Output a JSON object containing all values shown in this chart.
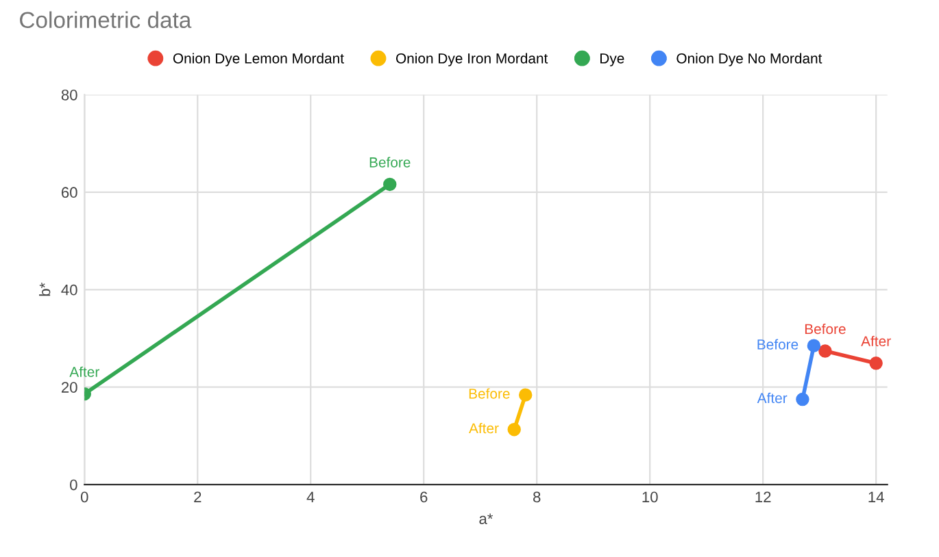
{
  "chart_data": {
    "type": "line",
    "title": "Colorimetric data",
    "xlabel": "a*",
    "ylabel": "b*",
    "xlim": [
      0,
      14.2
    ],
    "xticks": [
      0,
      2,
      4,
      6,
      8,
      10,
      12,
      14
    ],
    "ylim": [
      0,
      80
    ],
    "yticks": [
      0,
      20,
      40,
      60,
      80
    ],
    "grid": true,
    "legend": "top",
    "marker": "circle",
    "line_style": "solid",
    "series": [
      {
        "name": "Onion Dye Lemon Mordant",
        "color": "#ea4335",
        "x": [
          13.1,
          14.0
        ],
        "values": [
          27.4,
          24.9
        ]
      },
      {
        "name": "Onion Dye Iron Mordant",
        "color": "#fbbc04",
        "x": [
          7.8,
          7.6
        ],
        "values": [
          18.4,
          11.3
        ]
      },
      {
        "name": "Dye",
        "color": "#34a853",
        "x": [
          5.4,
          0
        ],
        "values": [
          61.6,
          18.6
        ]
      },
      {
        "name": "Onion Dye No Mordant",
        "color": "#4285f4",
        "x": [
          12.9,
          12.7
        ],
        "values": [
          28.5,
          17.5
        ]
      }
    ],
    "annotations": [
      {
        "text": "Before",
        "x": 13.1,
        "y": 27.4
      },
      {
        "text": "After",
        "x": 14.0,
        "y": 24.9
      },
      {
        "text": "Before",
        "x": 7.8,
        "y": 18.4
      },
      {
        "text": "After",
        "x": 7.6,
        "y": 11.3
      },
      {
        "text": "Before",
        "x": 5.4,
        "y": 61.6
      },
      {
        "text": "After",
        "x": 0,
        "y": 18.6
      },
      {
        "text": "Before",
        "x": 12.9,
        "y": 28.5
      },
      {
        "text": "After",
        "x": 12.7,
        "y": 17.5
      }
    ]
  }
}
